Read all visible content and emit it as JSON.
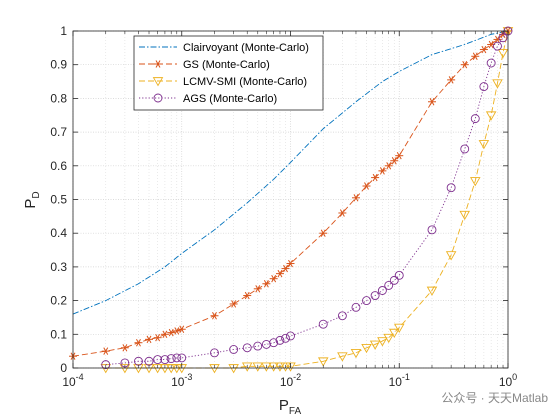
{
  "chart_data": {
    "type": "line",
    "xscale": "log",
    "xlim": [
      0.0001,
      1
    ],
    "ylim": [
      0,
      1
    ],
    "grid": true,
    "legend_placement": "top-left",
    "xlabel": {
      "main": "P",
      "sub": "FA"
    },
    "ylabel": {
      "main": "P",
      "sub": "D"
    },
    "xticks": [
      {
        "value": 0.0001,
        "base": "10",
        "exp": "-4"
      },
      {
        "value": 0.001,
        "base": "10",
        "exp": "-3"
      },
      {
        "value": 0.01,
        "base": "10",
        "exp": "-2"
      },
      {
        "value": 0.1,
        "base": "10",
        "exp": "-1"
      },
      {
        "value": 1,
        "base": "10",
        "exp": "0"
      }
    ],
    "yticks": [
      "0",
      "0.1",
      "0.2",
      "0.3",
      "0.4",
      "0.5",
      "0.6",
      "0.7",
      "0.8",
      "0.9",
      "1"
    ],
    "series": [
      {
        "name": "Clairvoyant (Monte-Carlo)",
        "color": "#0072BD",
        "dash": "dashdot",
        "marker": "none",
        "x": [
          0.0001,
          0.0002,
          0.0004,
          0.0007,
          0.001,
          0.002,
          0.004,
          0.007,
          0.01,
          0.02,
          0.04,
          0.07,
          0.1,
          0.2,
          0.4,
          0.7,
          1
        ],
        "y": [
          0.16,
          0.2,
          0.25,
          0.3,
          0.34,
          0.41,
          0.49,
          0.56,
          0.61,
          0.71,
          0.79,
          0.85,
          0.88,
          0.93,
          0.96,
          0.99,
          1.0
        ]
      },
      {
        "name": "GS (Monte-Carlo)",
        "color": "#D95319",
        "dash": "dashed",
        "marker": "asterisk",
        "x": [
          0.0001,
          0.0002,
          0.0003,
          0.0004,
          0.0005,
          0.0006,
          0.0007,
          0.0008,
          0.0009,
          0.001,
          0.002,
          0.003,
          0.004,
          0.005,
          0.006,
          0.007,
          0.008,
          0.009,
          0.01,
          0.02,
          0.03,
          0.04,
          0.05,
          0.06,
          0.07,
          0.08,
          0.09,
          0.1,
          0.2,
          0.3,
          0.4,
          0.5,
          0.6,
          0.7,
          0.8,
          0.9,
          1.0
        ],
        "y": [
          0.035,
          0.05,
          0.06,
          0.075,
          0.085,
          0.09,
          0.1,
          0.105,
          0.11,
          0.115,
          0.155,
          0.19,
          0.215,
          0.235,
          0.25,
          0.265,
          0.28,
          0.295,
          0.31,
          0.4,
          0.46,
          0.505,
          0.54,
          0.565,
          0.585,
          0.6,
          0.615,
          0.63,
          0.79,
          0.855,
          0.9,
          0.925,
          0.945,
          0.96,
          0.975,
          0.99,
          1.0
        ]
      },
      {
        "name": "LCMV-SMI (Monte-Carlo)",
        "color": "#EDB120",
        "dash": "dashed",
        "marker": "triangle-down",
        "x": [
          0.0002,
          0.0003,
          0.0004,
          0.0005,
          0.0006,
          0.0007,
          0.0008,
          0.0009,
          0.001,
          0.002,
          0.003,
          0.004,
          0.005,
          0.006,
          0.007,
          0.008,
          0.009,
          0.01,
          0.02,
          0.03,
          0.04,
          0.05,
          0.06,
          0.07,
          0.08,
          0.09,
          0.1,
          0.2,
          0.3,
          0.4,
          0.5,
          0.6,
          0.7,
          0.8,
          0.9,
          1.0
        ],
        "y": [
          0.0,
          0.0,
          0.0,
          0.0,
          0.0,
          0.0,
          0.0,
          0.0,
          0.0,
          0.0,
          0.0,
          0.005,
          0.005,
          0.005,
          0.005,
          0.005,
          0.005,
          0.005,
          0.02,
          0.035,
          0.045,
          0.06,
          0.07,
          0.08,
          0.09,
          0.105,
          0.12,
          0.23,
          0.335,
          0.455,
          0.555,
          0.665,
          0.75,
          0.845,
          0.935,
          1.0
        ]
      },
      {
        "name": "AGS (Monte-Carlo)",
        "color": "#7E2F8E",
        "dash": "dotted",
        "marker": "circle",
        "x": [
          0.0002,
          0.0003,
          0.0004,
          0.0005,
          0.0006,
          0.0007,
          0.0008,
          0.0009,
          0.001,
          0.002,
          0.003,
          0.004,
          0.005,
          0.006,
          0.007,
          0.008,
          0.009,
          0.01,
          0.02,
          0.03,
          0.04,
          0.05,
          0.06,
          0.07,
          0.08,
          0.09,
          0.1,
          0.2,
          0.3,
          0.4,
          0.5,
          0.6,
          0.7,
          0.8,
          0.9,
          1.0
        ],
        "y": [
          0.01,
          0.015,
          0.02,
          0.02,
          0.025,
          0.025,
          0.028,
          0.03,
          0.03,
          0.045,
          0.055,
          0.06,
          0.065,
          0.07,
          0.075,
          0.082,
          0.088,
          0.095,
          0.13,
          0.155,
          0.18,
          0.2,
          0.215,
          0.23,
          0.245,
          0.26,
          0.275,
          0.41,
          0.535,
          0.65,
          0.74,
          0.835,
          0.905,
          0.955,
          0.98,
          1.0
        ]
      }
    ]
  },
  "watermark": "公众号 · 天天Matlab"
}
